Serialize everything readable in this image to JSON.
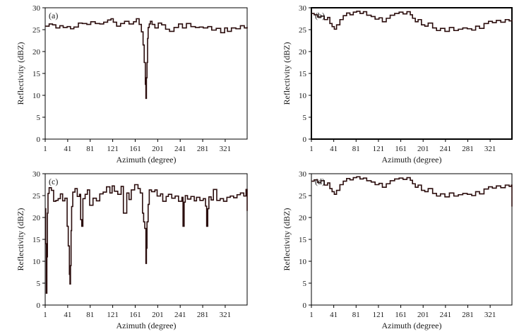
{
  "chart_data": [
    {
      "panel_label": "(a)",
      "type": "line",
      "xlabel": "Azimuth (degree)",
      "ylabel": "Reflectivity (dBZ)",
      "xticks": [
        "1",
        "41",
        "81",
        "121",
        "161",
        "201",
        "241",
        "281",
        "321"
      ],
      "yticks": [
        "0",
        "5",
        "10",
        "15",
        "20",
        "25",
        "30"
      ],
      "xlim": [
        1,
        360
      ],
      "ylim": [
        0,
        30
      ],
      "grid": false,
      "series": [
        {
          "color": "#2b0d0d",
          "x": [
            1,
            8,
            14,
            20,
            27,
            33,
            40,
            46,
            52,
            60,
            67,
            75,
            82,
            90,
            98,
            105,
            112,
            118,
            122,
            128,
            135,
            142,
            150,
            158,
            163,
            168,
            172,
            175,
            177,
            179,
            180,
            181,
            182,
            183,
            184,
            186,
            188,
            191,
            196,
            202,
            208,
            215,
            222,
            230,
            238,
            245,
            252,
            260,
            268,
            275,
            282,
            290,
            297,
            305,
            313,
            320,
            325,
            332,
            340,
            348,
            355,
            360
          ],
          "y": [
            25.8,
            26.3,
            26.1,
            25.4,
            25.9,
            25.5,
            25.7,
            25.2,
            25.6,
            26.5,
            26.4,
            26.2,
            26.8,
            26.4,
            26.3,
            26.7,
            27.2,
            27.5,
            26.7,
            25.8,
            26.4,
            26.9,
            26.3,
            26.8,
            27.5,
            26.2,
            24.5,
            21.5,
            17.5,
            12.5,
            9.3,
            14.0,
            17.5,
            23.0,
            25.5,
            26.3,
            26.9,
            26.2,
            25.4,
            26.5,
            26.1,
            25.1,
            24.6,
            25.5,
            26.3,
            25.4,
            26.4,
            25.7,
            25.5,
            25.6,
            25.4,
            25.7,
            24.9,
            25.3,
            24.3,
            25.4,
            24.6,
            25.4,
            25.2,
            25.9,
            25.4,
            25.6
          ]
        }
      ]
    },
    {
      "panel_label": "(b)",
      "type": "line",
      "xlabel": "Azimuth (degree)",
      "ylabel": "Reflectivity (dBZ)",
      "xticks": [
        "1",
        "41",
        "81",
        "121",
        "161",
        "201",
        "241",
        "281",
        "321"
      ],
      "yticks": [
        "0",
        "5",
        "10",
        "15",
        "20",
        "25",
        "30"
      ],
      "xlim": [
        1,
        360
      ],
      "ylim": [
        0,
        30
      ],
      "grid": false,
      "series": [
        {
          "color": "#2b0d0d",
          "x": [
            1,
            6,
            12,
            18,
            24,
            30,
            34,
            38,
            42,
            46,
            52,
            58,
            64,
            70,
            76,
            82,
            88,
            94,
            100,
            108,
            115,
            122,
            128,
            135,
            142,
            150,
            158,
            165,
            172,
            178,
            182,
            187,
            192,
            198,
            204,
            210,
            218,
            225,
            232,
            240,
            248,
            256,
            264,
            272,
            280,
            288,
            295,
            302,
            310,
            318,
            325,
            332,
            340,
            348,
            355,
            360
          ],
          "y": [
            28.7,
            28.4,
            27.9,
            28.1,
            27.3,
            27.8,
            26.4,
            25.7,
            25.1,
            26.1,
            27.3,
            28.2,
            28.8,
            28.4,
            29.0,
            29.2,
            28.7,
            29.1,
            28.3,
            28.0,
            27.4,
            27.7,
            26.8,
            27.6,
            28.3,
            28.7,
            29.0,
            28.6,
            29.1,
            28.4,
            27.6,
            26.8,
            27.3,
            26.1,
            25.8,
            26.5,
            25.4,
            24.8,
            25.3,
            24.6,
            25.5,
            24.8,
            25.1,
            25.4,
            25.2,
            24.9,
            25.8,
            25.3,
            26.4,
            26.9,
            26.6,
            27.1,
            26.7,
            27.3,
            27.0,
            27.3
          ]
        }
      ]
    },
    {
      "panel_label": "(c)",
      "type": "line",
      "xlabel": "Azimuth (degree)",
      "ylabel": "Reflectivity (dBZ)",
      "xticks": [
        "1",
        "41",
        "81",
        "121",
        "161",
        "201",
        "241",
        "281",
        "321"
      ],
      "yticks": [
        "0",
        "5",
        "10",
        "15",
        "20",
        "25",
        "30"
      ],
      "xlim": [
        1,
        360
      ],
      "ylim": [
        0,
        30
      ],
      "grid": false,
      "series": [
        {
          "color": "#2b0d0d",
          "x": [
            1,
            2,
            3,
            4,
            5,
            6,
            8,
            12,
            16,
            20,
            24,
            28,
            32,
            36,
            40,
            42,
            44,
            45,
            46,
            47,
            48,
            50,
            54,
            58,
            62,
            64,
            66,
            68,
            72,
            76,
            80,
            86,
            92,
            98,
            104,
            110,
            116,
            120,
            124,
            130,
            136,
            140,
            146,
            150,
            154,
            160,
            166,
            170,
            174,
            176,
            178,
            180,
            181,
            182,
            184,
            186,
            190,
            196,
            200,
            206,
            210,
            216,
            220,
            226,
            232,
            238,
            244,
            246,
            248,
            250,
            254,
            260,
            266,
            270,
            276,
            282,
            286,
            288,
            290,
            292,
            296,
            300,
            306,
            312,
            318,
            324,
            330,
            336,
            342,
            348,
            354,
            358,
            360
          ],
          "y": [
            22.0,
            14.0,
            2.7,
            11.0,
            21.0,
            25.5,
            26.8,
            26.2,
            23.7,
            23.9,
            24.3,
            25.4,
            23.8,
            24.4,
            18.0,
            13.5,
            7.0,
            4.8,
            9.0,
            17.0,
            22.5,
            25.8,
            26.6,
            24.8,
            25.3,
            19.5,
            18.0,
            24.3,
            25.3,
            26.3,
            22.8,
            24.4,
            23.8,
            25.4,
            25.8,
            27.0,
            25.6,
            27.2,
            26.0,
            25.3,
            27.1,
            21.0,
            25.6,
            24.1,
            26.3,
            27.5,
            26.6,
            25.6,
            21.0,
            19.0,
            17.5,
            9.5,
            13.0,
            19.0,
            23.0,
            26.3,
            25.9,
            26.3,
            24.9,
            25.4,
            23.7,
            24.8,
            25.3,
            24.4,
            24.9,
            23.7,
            24.6,
            18.0,
            23.5,
            25.0,
            24.2,
            24.8,
            23.8,
            24.6,
            23.9,
            24.3,
            22.6,
            18.0,
            22.0,
            24.7,
            24.0,
            26.4,
            23.9,
            24.3,
            23.7,
            24.6,
            24.9,
            24.5,
            25.2,
            25.6,
            24.9,
            26.4,
            21.5
          ]
        }
      ]
    },
    {
      "panel_label": "(d)",
      "type": "line",
      "xlabel": "Azimuth (degree)",
      "ylabel": "Reflectivity (dBZ)",
      "xticks": [
        "1",
        "41",
        "81",
        "121",
        "161",
        "201",
        "241",
        "281",
        "321"
      ],
      "yticks": [
        "0",
        "5",
        "10",
        "15",
        "20",
        "25",
        "30"
      ],
      "xlim": [
        1,
        360
      ],
      "ylim": [
        0,
        30
      ],
      "grid": false,
      "series": [
        {
          "color": "#2b0d0d",
          "x": [
            1,
            6,
            12,
            18,
            24,
            30,
            34,
            38,
            42,
            46,
            52,
            58,
            64,
            70,
            76,
            82,
            88,
            94,
            100,
            108,
            115,
            122,
            128,
            135,
            142,
            150,
            158,
            165,
            172,
            178,
            182,
            187,
            192,
            198,
            204,
            210,
            218,
            225,
            232,
            240,
            248,
            256,
            264,
            272,
            280,
            288,
            295,
            302,
            310,
            318,
            325,
            332,
            340,
            348,
            355,
            359,
            360
          ],
          "y": [
            28.3,
            28.6,
            28.0,
            28.4,
            27.4,
            27.9,
            26.6,
            25.9,
            25.3,
            26.2,
            27.5,
            28.3,
            28.9,
            28.6,
            29.1,
            29.3,
            28.8,
            29.0,
            28.4,
            28.1,
            27.5,
            27.8,
            26.9,
            27.7,
            28.4,
            28.8,
            29.0,
            28.7,
            29.1,
            28.5,
            27.7,
            26.9,
            27.4,
            26.2,
            25.9,
            26.6,
            25.5,
            24.9,
            25.4,
            24.7,
            25.6,
            24.9,
            25.2,
            25.5,
            25.3,
            25.0,
            25.9,
            25.4,
            26.5,
            27.0,
            26.7,
            27.2,
            26.8,
            27.4,
            27.1,
            27.4,
            22.5
          ]
        }
      ]
    }
  ]
}
